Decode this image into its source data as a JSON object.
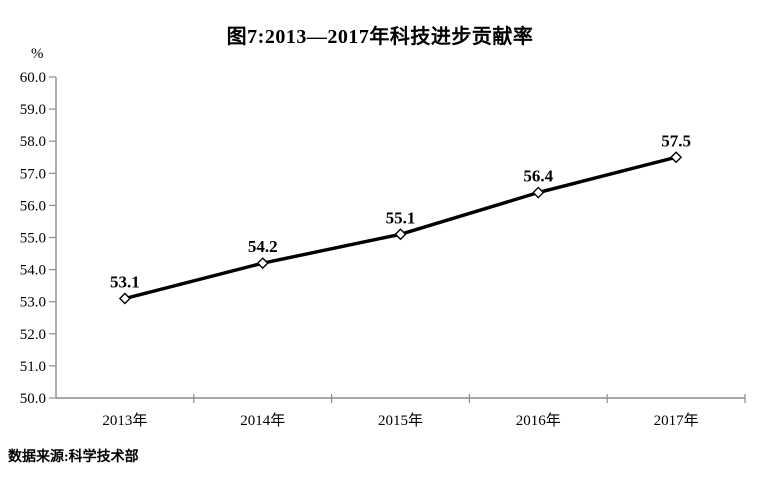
{
  "page": {
    "title": "图7:2013—2017年科技进步贡献率",
    "source_note": "数据来源:科学技术部"
  },
  "chart_data": {
    "type": "line",
    "title": "图7:2013—2017年科技进步贡献率",
    "unit_label": "%",
    "categories": [
      "2013年",
      "2014年",
      "2015年",
      "2016年",
      "2017年"
    ],
    "values": [
      53.1,
      54.2,
      55.1,
      56.4,
      57.5
    ],
    "data_labels": [
      "53.1",
      "54.2",
      "55.1",
      "56.4",
      "57.5"
    ],
    "ylim": [
      50.0,
      60.0
    ],
    "y_tick_step": 1.0,
    "y_tick_labels": [
      "60.0",
      "59.0",
      "58.0",
      "57.0",
      "56.0",
      "55.0",
      "54.0",
      "53.0",
      "52.0",
      "51.0",
      "50.0"
    ],
    "grid": false,
    "legend": "none",
    "source": "数据来源:科学技术部",
    "colors": {
      "line": "#000000",
      "marker_fill": "#ffffff",
      "marker_stroke": "#000000",
      "axis": "#8c8c8c",
      "text": "#000000"
    }
  }
}
